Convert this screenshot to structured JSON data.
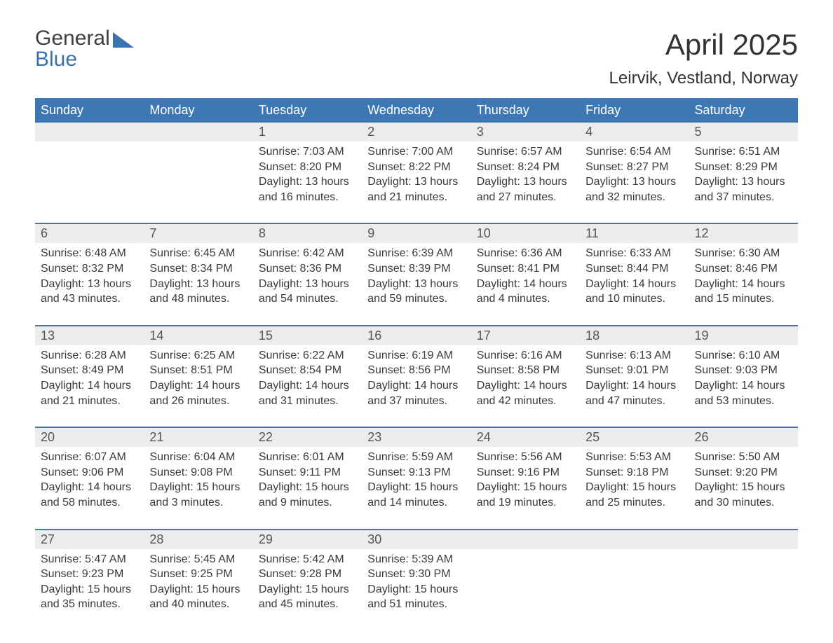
{
  "logo": {
    "line1": "General",
    "line2": "Blue"
  },
  "title": "April 2025",
  "location": "Leirvik, Vestland, Norway",
  "colors": {
    "header_bg": "#3d78b5",
    "header_text": "#ffffff",
    "daynum_bg": "#ececec",
    "row_border": "#3d78b5",
    "body_text": "#3a3a3a",
    "page_bg": "#ffffff"
  },
  "typography": {
    "title_fontsize": 42,
    "location_fontsize": 24,
    "header_fontsize": 18,
    "daynum_fontsize": 18,
    "cell_fontsize": 16
  },
  "layout": {
    "rows": 5,
    "cols": 7,
    "start_weekday_index": 2
  },
  "weekdays": [
    "Sunday",
    "Monday",
    "Tuesday",
    "Wednesday",
    "Thursday",
    "Friday",
    "Saturday"
  ],
  "days": [
    {
      "n": 1,
      "sunrise": "7:03 AM",
      "sunset": "8:20 PM",
      "daylight": "13 hours and 16 minutes."
    },
    {
      "n": 2,
      "sunrise": "7:00 AM",
      "sunset": "8:22 PM",
      "daylight": "13 hours and 21 minutes."
    },
    {
      "n": 3,
      "sunrise": "6:57 AM",
      "sunset": "8:24 PM",
      "daylight": "13 hours and 27 minutes."
    },
    {
      "n": 4,
      "sunrise": "6:54 AM",
      "sunset": "8:27 PM",
      "daylight": "13 hours and 32 minutes."
    },
    {
      "n": 5,
      "sunrise": "6:51 AM",
      "sunset": "8:29 PM",
      "daylight": "13 hours and 37 minutes."
    },
    {
      "n": 6,
      "sunrise": "6:48 AM",
      "sunset": "8:32 PM",
      "daylight": "13 hours and 43 minutes."
    },
    {
      "n": 7,
      "sunrise": "6:45 AM",
      "sunset": "8:34 PM",
      "daylight": "13 hours and 48 minutes."
    },
    {
      "n": 8,
      "sunrise": "6:42 AM",
      "sunset": "8:36 PM",
      "daylight": "13 hours and 54 minutes."
    },
    {
      "n": 9,
      "sunrise": "6:39 AM",
      "sunset": "8:39 PM",
      "daylight": "13 hours and 59 minutes."
    },
    {
      "n": 10,
      "sunrise": "6:36 AM",
      "sunset": "8:41 PM",
      "daylight": "14 hours and 4 minutes."
    },
    {
      "n": 11,
      "sunrise": "6:33 AM",
      "sunset": "8:44 PM",
      "daylight": "14 hours and 10 minutes."
    },
    {
      "n": 12,
      "sunrise": "6:30 AM",
      "sunset": "8:46 PM",
      "daylight": "14 hours and 15 minutes."
    },
    {
      "n": 13,
      "sunrise": "6:28 AM",
      "sunset": "8:49 PM",
      "daylight": "14 hours and 21 minutes."
    },
    {
      "n": 14,
      "sunrise": "6:25 AM",
      "sunset": "8:51 PM",
      "daylight": "14 hours and 26 minutes."
    },
    {
      "n": 15,
      "sunrise": "6:22 AM",
      "sunset": "8:54 PM",
      "daylight": "14 hours and 31 minutes."
    },
    {
      "n": 16,
      "sunrise": "6:19 AM",
      "sunset": "8:56 PM",
      "daylight": "14 hours and 37 minutes."
    },
    {
      "n": 17,
      "sunrise": "6:16 AM",
      "sunset": "8:58 PM",
      "daylight": "14 hours and 42 minutes."
    },
    {
      "n": 18,
      "sunrise": "6:13 AM",
      "sunset": "9:01 PM",
      "daylight": "14 hours and 47 minutes."
    },
    {
      "n": 19,
      "sunrise": "6:10 AM",
      "sunset": "9:03 PM",
      "daylight": "14 hours and 53 minutes."
    },
    {
      "n": 20,
      "sunrise": "6:07 AM",
      "sunset": "9:06 PM",
      "daylight": "14 hours and 58 minutes."
    },
    {
      "n": 21,
      "sunrise": "6:04 AM",
      "sunset": "9:08 PM",
      "daylight": "15 hours and 3 minutes."
    },
    {
      "n": 22,
      "sunrise": "6:01 AM",
      "sunset": "9:11 PM",
      "daylight": "15 hours and 9 minutes."
    },
    {
      "n": 23,
      "sunrise": "5:59 AM",
      "sunset": "9:13 PM",
      "daylight": "15 hours and 14 minutes."
    },
    {
      "n": 24,
      "sunrise": "5:56 AM",
      "sunset": "9:16 PM",
      "daylight": "15 hours and 19 minutes."
    },
    {
      "n": 25,
      "sunrise": "5:53 AM",
      "sunset": "9:18 PM",
      "daylight": "15 hours and 25 minutes."
    },
    {
      "n": 26,
      "sunrise": "5:50 AM",
      "sunset": "9:20 PM",
      "daylight": "15 hours and 30 minutes."
    },
    {
      "n": 27,
      "sunrise": "5:47 AM",
      "sunset": "9:23 PM",
      "daylight": "15 hours and 35 minutes."
    },
    {
      "n": 28,
      "sunrise": "5:45 AM",
      "sunset": "9:25 PM",
      "daylight": "15 hours and 40 minutes."
    },
    {
      "n": 29,
      "sunrise": "5:42 AM",
      "sunset": "9:28 PM",
      "daylight": "15 hours and 45 minutes."
    },
    {
      "n": 30,
      "sunrise": "5:39 AM",
      "sunset": "9:30 PM",
      "daylight": "15 hours and 51 minutes."
    }
  ],
  "labels": {
    "sunrise": "Sunrise: ",
    "sunset": "Sunset: ",
    "daylight": "Daylight: "
  }
}
